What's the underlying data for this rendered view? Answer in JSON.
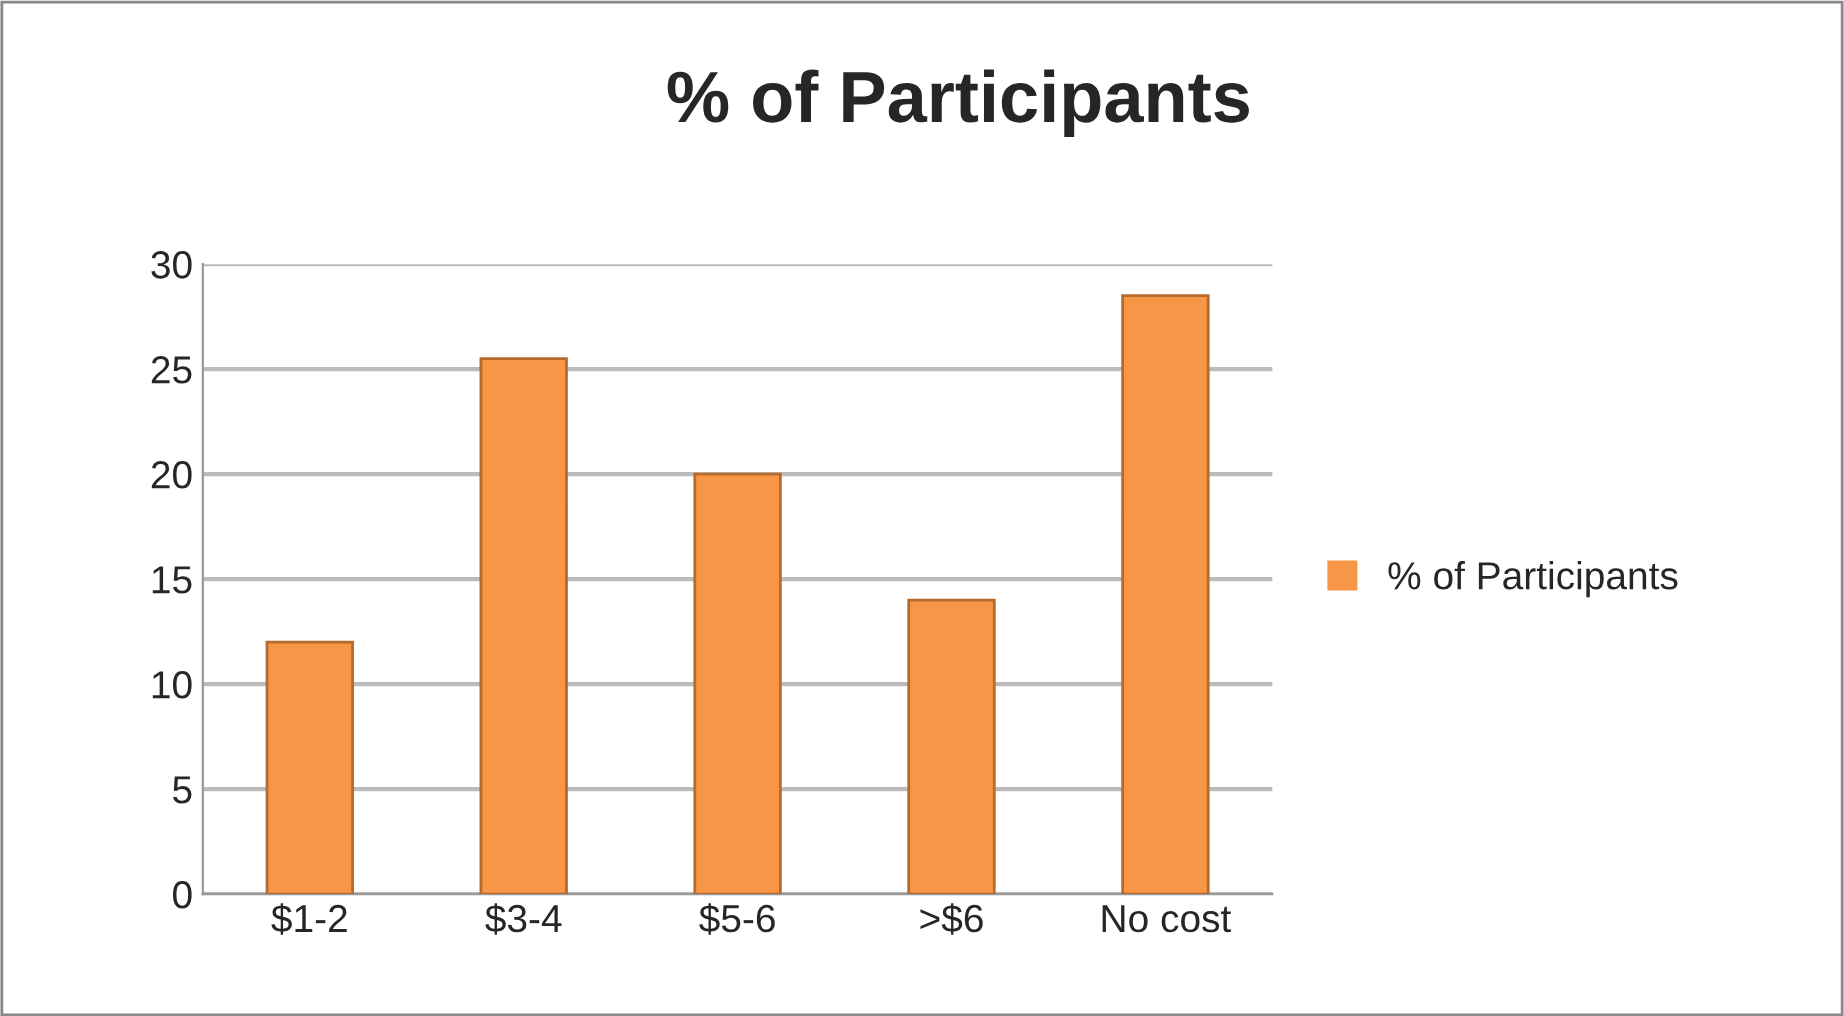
{
  "chart_data": {
    "type": "bar",
    "title": "% of Participants",
    "categories": [
      "$1-2",
      "$3-4",
      "$5-6",
      ">$6",
      "No cost"
    ],
    "series": [
      {
        "name": "% of Participants",
        "color": "#f79646",
        "values": [
          12,
          25.5,
          20,
          14,
          28.5
        ]
      }
    ],
    "ylim": [
      0,
      30
    ],
    "yticks": [
      0,
      5,
      10,
      15,
      20,
      25,
      30
    ],
    "grid": "y",
    "legend": "right"
  }
}
